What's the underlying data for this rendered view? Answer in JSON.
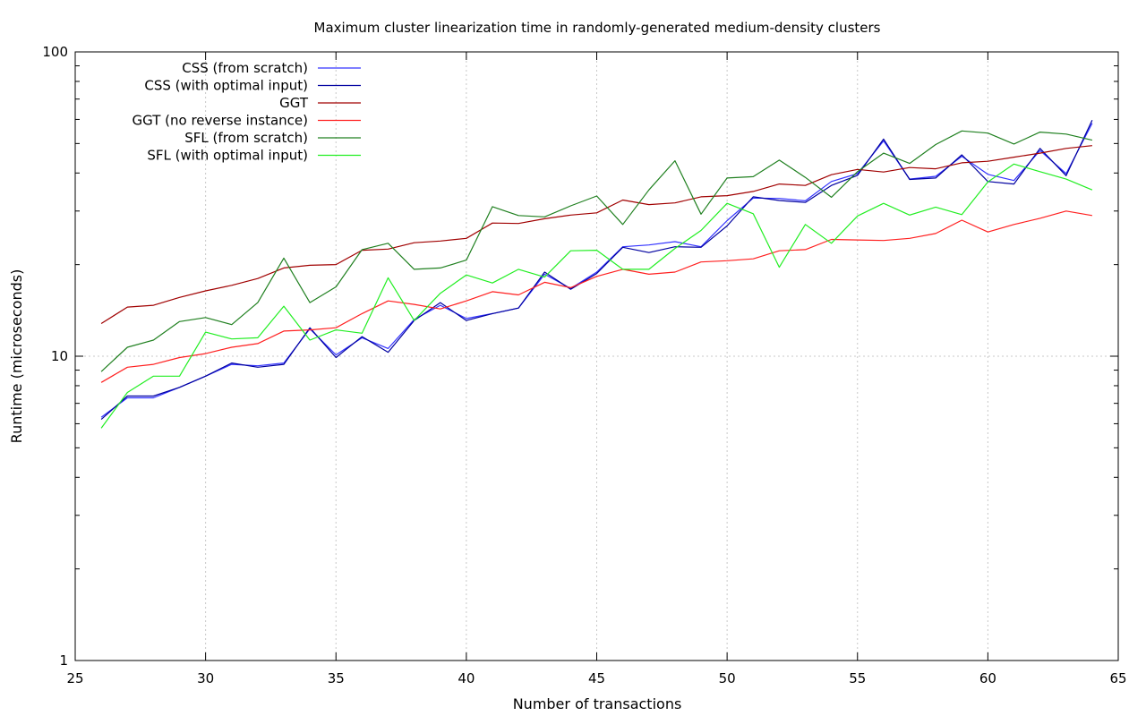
{
  "chart_data": {
    "type": "line",
    "title": "Maximum cluster linearization time in randomly-generated medium-density clusters",
    "xlabel": "Number of transactions",
    "ylabel": "Runtime (microseconds)",
    "xlim": [
      25,
      65
    ],
    "ylim": [
      1,
      100
    ],
    "yscale": "log",
    "grid": true,
    "legend_position": "top-left",
    "x_ticks": [
      "25",
      "30",
      "35",
      "40",
      "45",
      "50",
      "55",
      "60",
      "65"
    ],
    "y_ticks": [
      "1",
      "10",
      "100"
    ],
    "x": [
      26,
      27,
      28,
      29,
      30,
      31,
      32,
      33,
      34,
      35,
      36,
      37,
      38,
      39,
      40,
      41,
      42,
      43,
      44,
      45,
      46,
      47,
      48,
      49,
      50,
      51,
      52,
      53,
      54,
      55,
      56,
      57,
      58,
      59,
      60,
      61,
      62,
      63,
      64
    ],
    "series": [
      {
        "name": "CSS (from scratch)",
        "color": "#3333ff",
        "values": [
          6.3,
          7.3,
          7.3,
          7.9,
          8.6,
          9.4,
          9.3,
          9.5,
          12.3,
          10.1,
          11.5,
          10.6,
          13.2,
          14.7,
          13.3,
          13.8,
          14.4,
          18.6,
          16.7,
          18.9,
          22.9,
          23.2,
          23.8,
          22.9,
          27.9,
          33.1,
          33.0,
          32.4,
          37.5,
          39.8,
          51.0,
          38.2,
          39.0,
          45.4,
          39.6,
          37.8,
          47.4,
          39.8,
          58.3
        ]
      },
      {
        "name": "CSS (with optimal input)",
        "color": "#0000a0",
        "values": [
          6.2,
          7.4,
          7.4,
          7.9,
          8.6,
          9.5,
          9.2,
          9.4,
          12.4,
          9.9,
          11.6,
          10.3,
          13.1,
          15.0,
          13.1,
          13.8,
          14.4,
          18.9,
          16.6,
          18.7,
          22.8,
          21.9,
          22.9,
          22.8,
          26.8,
          33.4,
          32.5,
          32.0,
          36.4,
          39.3,
          51.7,
          38.1,
          38.5,
          45.9,
          37.5,
          36.8,
          48.2,
          39.2,
          59.7
        ]
      },
      {
        "name": "GGT",
        "color": "#a00000",
        "values": [
          12.8,
          14.5,
          14.7,
          15.6,
          16.4,
          17.1,
          18.0,
          19.5,
          19.9,
          20.0,
          22.3,
          22.5,
          23.6,
          23.9,
          24.4,
          27.4,
          27.3,
          28.3,
          29.1,
          29.6,
          32.6,
          31.5,
          31.9,
          33.4,
          33.7,
          34.8,
          36.8,
          36.4,
          39.5,
          41.1,
          40.3,
          41.7,
          41.3,
          43.2,
          43.7,
          45.1,
          46.5,
          48.2,
          49.2
        ]
      },
      {
        "name": "GGT (no reverse instance)",
        "color": "#ff2020",
        "values": [
          8.2,
          9.2,
          9.4,
          9.9,
          10.2,
          10.7,
          11.0,
          12.1,
          12.2,
          12.4,
          13.8,
          15.2,
          14.8,
          14.3,
          15.2,
          16.3,
          15.9,
          17.5,
          16.8,
          18.3,
          19.3,
          18.6,
          18.9,
          20.4,
          20.6,
          20.9,
          22.2,
          22.4,
          24.2,
          24.1,
          24.0,
          24.4,
          25.3,
          28.0,
          25.6,
          27.1,
          28.4,
          30.0,
          29.0
        ]
      },
      {
        "name": "SFL (from scratch)",
        "color": "#208020",
        "values": [
          8.9,
          10.7,
          11.3,
          13.0,
          13.4,
          12.7,
          15.0,
          21.0,
          15.0,
          16.9,
          22.4,
          23.5,
          19.3,
          19.5,
          20.7,
          31.0,
          29.0,
          28.7,
          31.2,
          33.6,
          27.1,
          35.2,
          43.9,
          29.3,
          38.5,
          38.9,
          44.1,
          38.7,
          33.3,
          40.4,
          46.5,
          43.0,
          49.6,
          55.0,
          54.1,
          49.8,
          54.5,
          53.7,
          51.3
        ]
      },
      {
        "name": "SFL (with optimal input)",
        "color": "#22ee22",
        "values": [
          5.8,
          7.6,
          8.6,
          8.6,
          12.0,
          11.4,
          11.5,
          14.6,
          11.3,
          12.2,
          11.9,
          18.1,
          13.1,
          16.1,
          18.5,
          17.4,
          19.3,
          18.2,
          22.2,
          22.3,
          19.3,
          19.3,
          22.6,
          25.9,
          31.8,
          29.4,
          19.6,
          27.1,
          23.5,
          28.9,
          31.8,
          29.1,
          30.9,
          29.2,
          37.4,
          42.8,
          40.4,
          38.2,
          35.2
        ]
      }
    ]
  }
}
